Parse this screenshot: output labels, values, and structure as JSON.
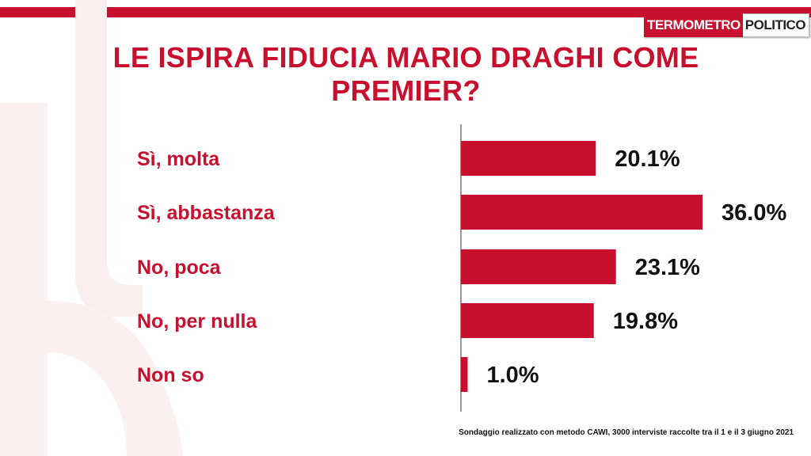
{
  "header": {
    "logo_part1": "TERMOMETRO",
    "logo_part2": "POLITICO",
    "accent_color": "#c8102e"
  },
  "title": "LE ISPIRA FIDUCIA MARIO DRAGHI COME PREMIER?",
  "footnote": "Sondaggio realizzato con metodo CAWI, 3000 interviste raccolte tra il 1  e il 3 giugno 2021",
  "chart_data": {
    "type": "bar",
    "orientation": "horizontal",
    "title": "LE ISPIRA FIDUCIA MARIO DRAGHI COME PREMIER?",
    "categories": [
      "Sì, molta",
      "Sì, abbastanza",
      "No, poca",
      "No, per nulla",
      "Non so"
    ],
    "values": [
      20.1,
      36.0,
      23.1,
      19.8,
      1.0
    ],
    "value_labels": [
      "20.1%",
      "36.0%",
      "23.1%",
      "19.8%",
      "1.0%"
    ],
    "bar_color": "#c8102e",
    "grid": false,
    "legend": "none",
    "xlim": [
      0,
      36
    ]
  }
}
